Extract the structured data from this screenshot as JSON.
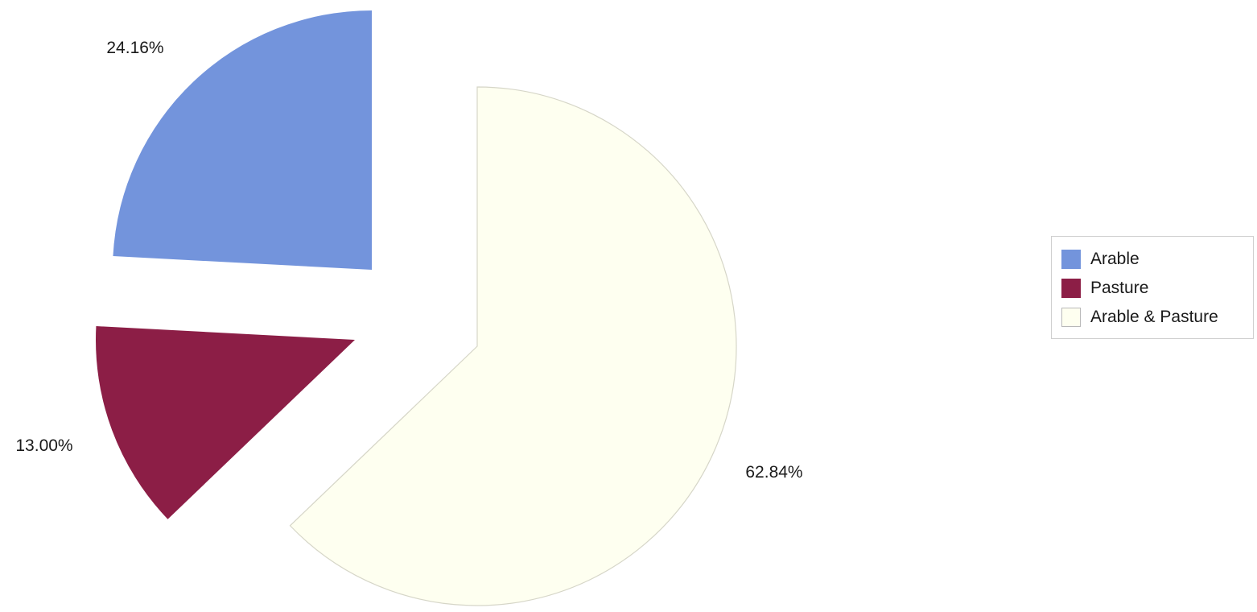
{
  "chart_data": {
    "type": "pie",
    "title": "",
    "categories": [
      "Arable",
      "Pasture",
      "Arable & Pasture"
    ],
    "values": [
      24.16,
      13.0,
      62.84
    ],
    "data_labels": [
      "24.16%",
      "13.00%",
      "62.84%"
    ],
    "colors": [
      "#7394dc",
      "#8c1e46",
      "#fefff0"
    ],
    "exploded": true,
    "legend_position": "right"
  },
  "legend": {
    "items": [
      {
        "label": "Arable",
        "color": "#7394dc"
      },
      {
        "label": "Pasture",
        "color": "#8c1e46"
      },
      {
        "label": "Arable & Pasture",
        "color": "#fefff0"
      }
    ]
  }
}
